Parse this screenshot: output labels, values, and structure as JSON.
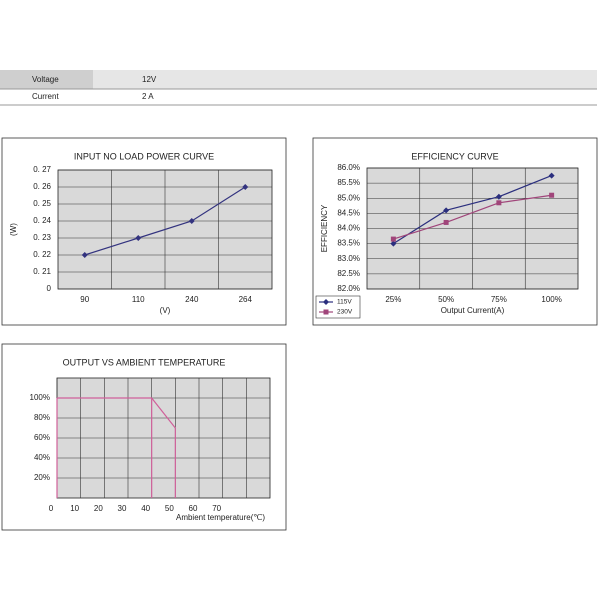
{
  "table": {
    "rows": [
      [
        "Voltage",
        "12V"
      ],
      [
        "Current",
        "2 A"
      ]
    ]
  },
  "chart_data": [
    {
      "type": "line",
      "title": "INPUT NO LOAD POWER CURVE",
      "y_label": "(W)",
      "x_label": "(V)",
      "categories": [
        "90",
        "110",
        "240",
        "264"
      ],
      "values": [
        0.22,
        0.23,
        0.24,
        0.26
      ],
      "color": "#33337f",
      "marker": "diamond",
      "ylim": [
        0,
        0.27
      ],
      "y_axis_break": true,
      "yticks": [
        0,
        {
          "value": 0.21,
          "label": "0. 21"
        },
        {
          "value": 0.22,
          "label": "0. 22"
        },
        {
          "value": 0.23,
          "label": "0. 23"
        },
        {
          "value": 0.24,
          "label": "0. 24"
        },
        {
          "value": 0.25,
          "label": "0. 25"
        },
        {
          "value": 0.26,
          "label": "0. 26"
        },
        {
          "value": 0.27,
          "label": "0. 27"
        }
      ],
      "grid": true
    },
    {
      "type": "line",
      "title": "EFFICIENCY CURVE",
      "y_label": "EFFICIENCY",
      "x_label": "Output Current(A)",
      "categories": [
        "25%",
        "50%",
        "75%",
        "100%"
      ],
      "series": [
        {
          "name": "115V",
          "color": "#2b2f7e",
          "marker": "diamond",
          "values": [
            83.5,
            84.6,
            85.05,
            85.75
          ]
        },
        {
          "name": "230V",
          "color": "#a0457a",
          "marker": "square",
          "values": [
            83.65,
            84.2,
            84.85,
            85.1
          ]
        }
      ],
      "ylim": [
        82,
        86
      ],
      "yticks": [
        {
          "value": 82,
          "label": "82.0%"
        },
        {
          "value": 82.5,
          "label": "82.5%"
        },
        {
          "value": 83,
          "label": "83.0%"
        },
        {
          "value": 83.5,
          "label": "83.5%"
        },
        {
          "value": 84,
          "label": "84.0%"
        },
        {
          "value": 84.5,
          "label": "84.5%"
        },
        {
          "value": 85,
          "label": "85.0%"
        },
        {
          "value": 85.5,
          "label": "85.5%"
        },
        {
          "value": 86,
          "label": "86.0%"
        }
      ],
      "grid": true,
      "legend": "bottom-left"
    },
    {
      "type": "line",
      "title": "OUTPUT VS AMBIENT TEMPERATURE",
      "x_label": "Ambient temperature(℃)",
      "x": [
        0,
        40,
        50
      ],
      "values": [
        100,
        100,
        70
      ],
      "color": "#d0609a",
      "drop_lines": true,
      "xlim": [
        0,
        90
      ],
      "xticks": [
        0,
        10,
        20,
        30,
        40,
        50,
        60,
        70
      ],
      "ylim": [
        0,
        120
      ],
      "yticks": [
        {
          "value": 20,
          "label": "20%"
        },
        {
          "value": 40,
          "label": "40%"
        },
        {
          "value": 60,
          "label": "60%"
        },
        {
          "value": 80,
          "label": "80%"
        },
        {
          "value": 100,
          "label": "100%"
        }
      ],
      "grid": true
    }
  ]
}
